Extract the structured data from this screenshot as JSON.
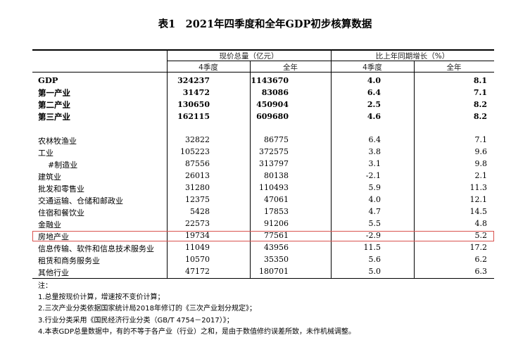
{
  "title": "表1　2021年四季度和全年GDP初步核算数据",
  "headers": {
    "group1": "现价总量（亿元）",
    "group2": "比上年同期增长（%）",
    "q4": "4季度",
    "year": "全年",
    "q4b": "4季度",
    "yearb": "全年"
  },
  "rows": [
    {
      "label": "GDP",
      "q4_total": "324237",
      "year_total": "1143670",
      "q4_growth": "4.0",
      "year_growth": "8.1",
      "bold": true
    },
    {
      "label": "第一产业",
      "q4_total": "31472",
      "year_total": "83086",
      "q4_growth": "6.4",
      "year_growth": "7.1",
      "bold": true
    },
    {
      "label": "第二产业",
      "q4_total": "130650",
      "year_total": "450904",
      "q4_growth": "2.5",
      "year_growth": "8.2",
      "bold": true
    },
    {
      "label": "第三产业",
      "q4_total": "162115",
      "year_total": "609680",
      "q4_growth": "4.6",
      "year_growth": "8.2",
      "bold": true
    },
    {
      "label": "农林牧渔业",
      "q4_total": "32822",
      "year_total": "86775",
      "q4_growth": "6.4",
      "year_growth": "7.1"
    },
    {
      "label": "工业",
      "q4_total": "105223",
      "year_total": "372575",
      "q4_growth": "3.8",
      "year_growth": "9.6"
    },
    {
      "label": "  #制造业",
      "q4_total": "87556",
      "year_total": "313797",
      "q4_growth": "3.1",
      "year_growth": "9.8"
    },
    {
      "label": "建筑业",
      "q4_total": "26013",
      "year_total": "80138",
      "q4_growth": "-2.1",
      "year_growth": "2.1"
    },
    {
      "label": "批发和零售业",
      "q4_total": "31280",
      "year_total": "110493",
      "q4_growth": "5.9",
      "year_growth": "11.3"
    },
    {
      "label": "交通运输、仓储和邮政业",
      "q4_total": "12375",
      "year_total": "47061",
      "q4_growth": "4.0",
      "year_growth": "12.1"
    },
    {
      "label": "住宿和餐饮业",
      "q4_total": "5428",
      "year_total": "17853",
      "q4_growth": "4.7",
      "year_growth": "14.5"
    },
    {
      "label": "金融业",
      "q4_total": "22573",
      "year_total": "91206",
      "q4_growth": "5.5",
      "year_growth": "4.8"
    },
    {
      "label": "房地产业",
      "q4_total": "19734",
      "year_total": "77561",
      "q4_growth": "-2.9",
      "year_growth": "5.2",
      "highlight": true
    },
    {
      "label": "信息传输、软件和信息技术服务业",
      "q4_total": "11049",
      "year_total": "43956",
      "q4_growth": "11.5",
      "year_growth": "17.2"
    },
    {
      "label": "租赁和商务服务业",
      "q4_total": "10570",
      "year_total": "35350",
      "q4_growth": "5.6",
      "year_growth": "6.2"
    },
    {
      "label": "其他行业",
      "q4_total": "47172",
      "year_total": "180701",
      "q4_growth": "5.0",
      "year_growth": "6.3"
    }
  ],
  "notes": [
    "注：",
    "1.总量按现价计算，增速按不变价计算；",
    "2.三次产业分类依据国家统计局2018年修订的《三次产业划分规定》；",
    "3.行业分类采用《国民经济行业分类（GB/T 4754－2017）》；",
    "4.本表GDP总量数据中，有的不等于各产业（行业）之和，是由于数值修约误差所致，未作机械调整。"
  ],
  "colors": {
    "highlight_border": "#d9534f"
  }
}
